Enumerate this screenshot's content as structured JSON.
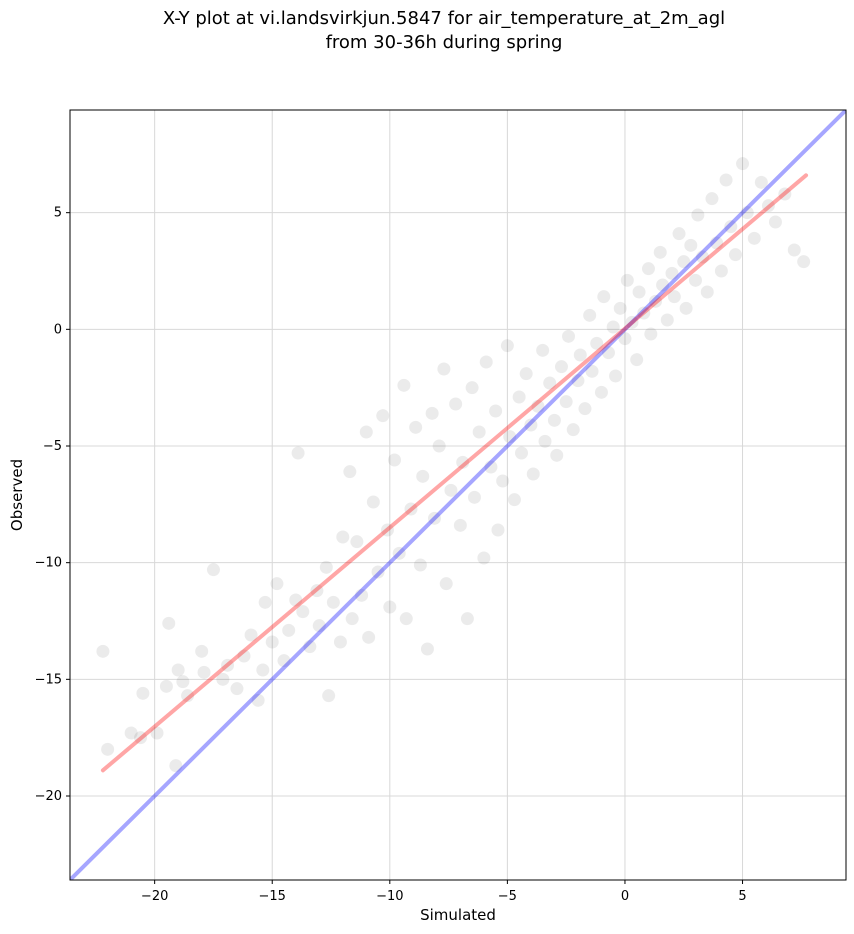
{
  "chart_data": {
    "type": "scatter",
    "title_lines": [
      "X-Y plot at vi.landsvirkjun.5847 for air_temperature_at_2m_agl",
      "from 30-36h during spring"
    ],
    "xlabel": "Simulated",
    "ylabel": "Observed",
    "xlim": [
      -23.6,
      9.4
    ],
    "ylim": [
      -23.6,
      9.4
    ],
    "xticks": [
      -20,
      -15,
      -10,
      -5,
      0,
      5
    ],
    "yticks": [
      -20,
      -15,
      -10,
      -5,
      0,
      5
    ],
    "xtick_labels": [
      "−20",
      "−15",
      "−10",
      "−5",
      "0",
      "5"
    ],
    "ytick_labels": [
      "−20",
      "−15",
      "−10",
      "−5",
      "0",
      "5"
    ],
    "grid": true,
    "point_color": "#000000",
    "point_opacity": 0.08,
    "lines": [
      {
        "kind": "identity",
        "color": "#0000ff",
        "x": [
          -23.6,
          9.4
        ],
        "y": [
          -23.6,
          9.4
        ]
      },
      {
        "kind": "fit",
        "color": "#ff0000",
        "x": [
          -22.2,
          7.7
        ],
        "y": [
          -18.9,
          6.6
        ]
      }
    ],
    "points": [
      [
        -22.2,
        -13.8
      ],
      [
        -22.0,
        -18.0
      ],
      [
        -21.0,
        -17.3
      ],
      [
        -20.6,
        -17.5
      ],
      [
        -20.5,
        -15.6
      ],
      [
        -19.9,
        -17.3
      ],
      [
        -19.5,
        -15.3
      ],
      [
        -19.4,
        -12.6
      ],
      [
        -19.1,
        -18.7
      ],
      [
        -19.0,
        -14.6
      ],
      [
        -18.8,
        -15.1
      ],
      [
        -18.6,
        -15.7
      ],
      [
        -18.0,
        -13.8
      ],
      [
        -17.9,
        -14.7
      ],
      [
        -17.5,
        -10.3
      ],
      [
        -17.1,
        -15.0
      ],
      [
        -16.9,
        -14.4
      ],
      [
        -16.5,
        -15.4
      ],
      [
        -16.2,
        -14.0
      ],
      [
        -15.9,
        -13.1
      ],
      [
        -15.6,
        -15.9
      ],
      [
        -15.4,
        -14.6
      ],
      [
        -15.3,
        -11.7
      ],
      [
        -15.0,
        -13.4
      ],
      [
        -14.8,
        -10.9
      ],
      [
        -14.5,
        -14.2
      ],
      [
        -14.3,
        -12.9
      ],
      [
        -14.0,
        -11.6
      ],
      [
        -13.9,
        -5.3
      ],
      [
        -13.7,
        -12.1
      ],
      [
        -13.4,
        -13.6
      ],
      [
        -13.1,
        -11.2
      ],
      [
        -13.0,
        -12.7
      ],
      [
        -12.7,
        -10.2
      ],
      [
        -12.6,
        -15.7
      ],
      [
        -12.4,
        -11.7
      ],
      [
        -12.1,
        -13.4
      ],
      [
        -12.0,
        -8.9
      ],
      [
        -11.7,
        -6.1
      ],
      [
        -11.6,
        -12.4
      ],
      [
        -11.4,
        -9.1
      ],
      [
        -11.2,
        -11.4
      ],
      [
        -11.0,
        -4.4
      ],
      [
        -10.9,
        -13.2
      ],
      [
        -10.7,
        -7.4
      ],
      [
        -10.5,
        -10.4
      ],
      [
        -10.3,
        -3.7
      ],
      [
        -10.1,
        -8.6
      ],
      [
        -10.0,
        -11.9
      ],
      [
        -9.8,
        -5.6
      ],
      [
        -9.6,
        -9.6
      ],
      [
        -9.4,
        -2.4
      ],
      [
        -9.3,
        -12.4
      ],
      [
        -9.1,
        -7.7
      ],
      [
        -8.9,
        -4.2
      ],
      [
        -8.7,
        -10.1
      ],
      [
        -8.6,
        -6.3
      ],
      [
        -8.4,
        -13.7
      ],
      [
        -8.2,
        -3.6
      ],
      [
        -8.1,
        -8.1
      ],
      [
        -7.9,
        -5.0
      ],
      [
        -7.7,
        -1.7
      ],
      [
        -7.6,
        -10.9
      ],
      [
        -7.4,
        -6.9
      ],
      [
        -7.2,
        -3.2
      ],
      [
        -7.0,
        -8.4
      ],
      [
        -6.9,
        -5.7
      ],
      [
        -6.7,
        -12.4
      ],
      [
        -6.5,
        -2.5
      ],
      [
        -6.4,
        -7.2
      ],
      [
        -6.2,
        -4.4
      ],
      [
        -6.0,
        -9.8
      ],
      [
        -5.9,
        -1.4
      ],
      [
        -5.7,
        -5.9
      ],
      [
        -5.5,
        -3.5
      ],
      [
        -5.4,
        -8.6
      ],
      [
        -5.2,
        -6.5
      ],
      [
        -5.0,
        -0.7
      ],
      [
        -4.9,
        -4.6
      ],
      [
        -4.7,
        -7.3
      ],
      [
        -4.5,
        -2.9
      ],
      [
        -4.4,
        -5.3
      ],
      [
        -4.2,
        -1.9
      ],
      [
        -4.0,
        -4.1
      ],
      [
        -3.9,
        -6.2
      ],
      [
        -3.7,
        -3.3
      ],
      [
        -3.5,
        -0.9
      ],
      [
        -3.4,
        -4.8
      ],
      [
        -3.2,
        -2.3
      ],
      [
        -3.0,
        -3.9
      ],
      [
        -2.9,
        -5.4
      ],
      [
        -2.7,
        -1.6
      ],
      [
        -2.5,
        -3.1
      ],
      [
        -2.4,
        -0.3
      ],
      [
        -2.2,
        -4.3
      ],
      [
        -2.0,
        -2.2
      ],
      [
        -1.9,
        -1.1
      ],
      [
        -1.7,
        -3.4
      ],
      [
        -1.5,
        0.6
      ],
      [
        -1.4,
        -1.8
      ],
      [
        -1.2,
        -0.6
      ],
      [
        -1.0,
        -2.7
      ],
      [
        -0.9,
        1.4
      ],
      [
        -0.7,
        -1.0
      ],
      [
        -0.5,
        0.1
      ],
      [
        -0.4,
        -2.0
      ],
      [
        -0.2,
        0.9
      ],
      [
        0.0,
        -0.4
      ],
      [
        0.1,
        2.1
      ],
      [
        0.3,
        0.3
      ],
      [
        0.5,
        -1.3
      ],
      [
        0.6,
        1.6
      ],
      [
        0.8,
        0.7
      ],
      [
        1.0,
        2.6
      ],
      [
        1.1,
        -0.2
      ],
      [
        1.3,
        1.2
      ],
      [
        1.5,
        3.3
      ],
      [
        1.6,
        1.9
      ],
      [
        1.8,
        0.4
      ],
      [
        2.0,
        2.4
      ],
      [
        2.1,
        1.4
      ],
      [
        2.3,
        4.1
      ],
      [
        2.5,
        2.9
      ],
      [
        2.6,
        0.9
      ],
      [
        2.8,
        3.6
      ],
      [
        3.0,
        2.1
      ],
      [
        3.1,
        4.9
      ],
      [
        3.3,
        3.1
      ],
      [
        3.5,
        1.6
      ],
      [
        3.7,
        5.6
      ],
      [
        3.9,
        3.7
      ],
      [
        4.1,
        2.5
      ],
      [
        4.3,
        6.4
      ],
      [
        4.5,
        4.4
      ],
      [
        4.7,
        3.2
      ],
      [
        5.0,
        7.1
      ],
      [
        5.2,
        5.0
      ],
      [
        5.5,
        3.9
      ],
      [
        5.8,
        6.3
      ],
      [
        6.1,
        5.3
      ],
      [
        6.4,
        4.6
      ],
      [
        6.8,
        5.8
      ],
      [
        7.2,
        3.4
      ],
      [
        7.6,
        2.9
      ]
    ]
  }
}
